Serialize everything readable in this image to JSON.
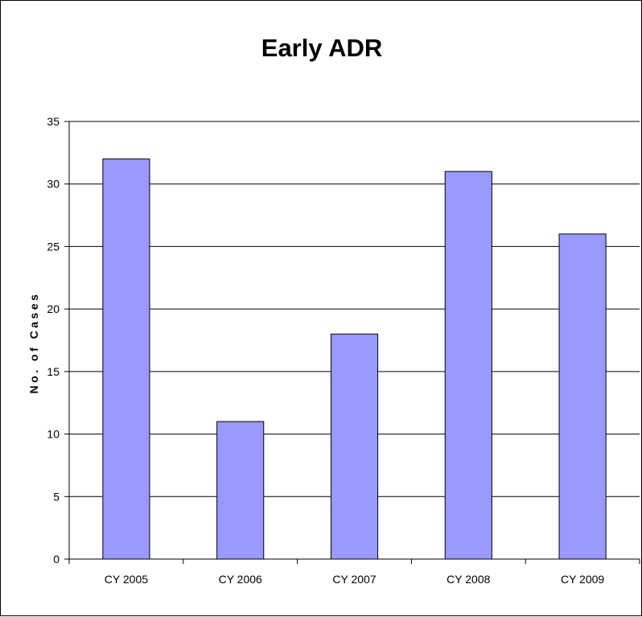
{
  "chart_data": {
    "type": "bar",
    "title": "Early ADR",
    "xlabel": "",
    "ylabel": "No. of Cases",
    "categories": [
      "CY 2005",
      "CY 2006",
      "CY 2007",
      "CY 2008",
      "CY 2009"
    ],
    "values": [
      32,
      11,
      18,
      31,
      26
    ],
    "ylim": [
      0,
      35
    ],
    "yticks": [
      0,
      5,
      10,
      15,
      20,
      25,
      30,
      35
    ],
    "grid": true,
    "legend": "none",
    "bar_color": "#9999ff"
  }
}
